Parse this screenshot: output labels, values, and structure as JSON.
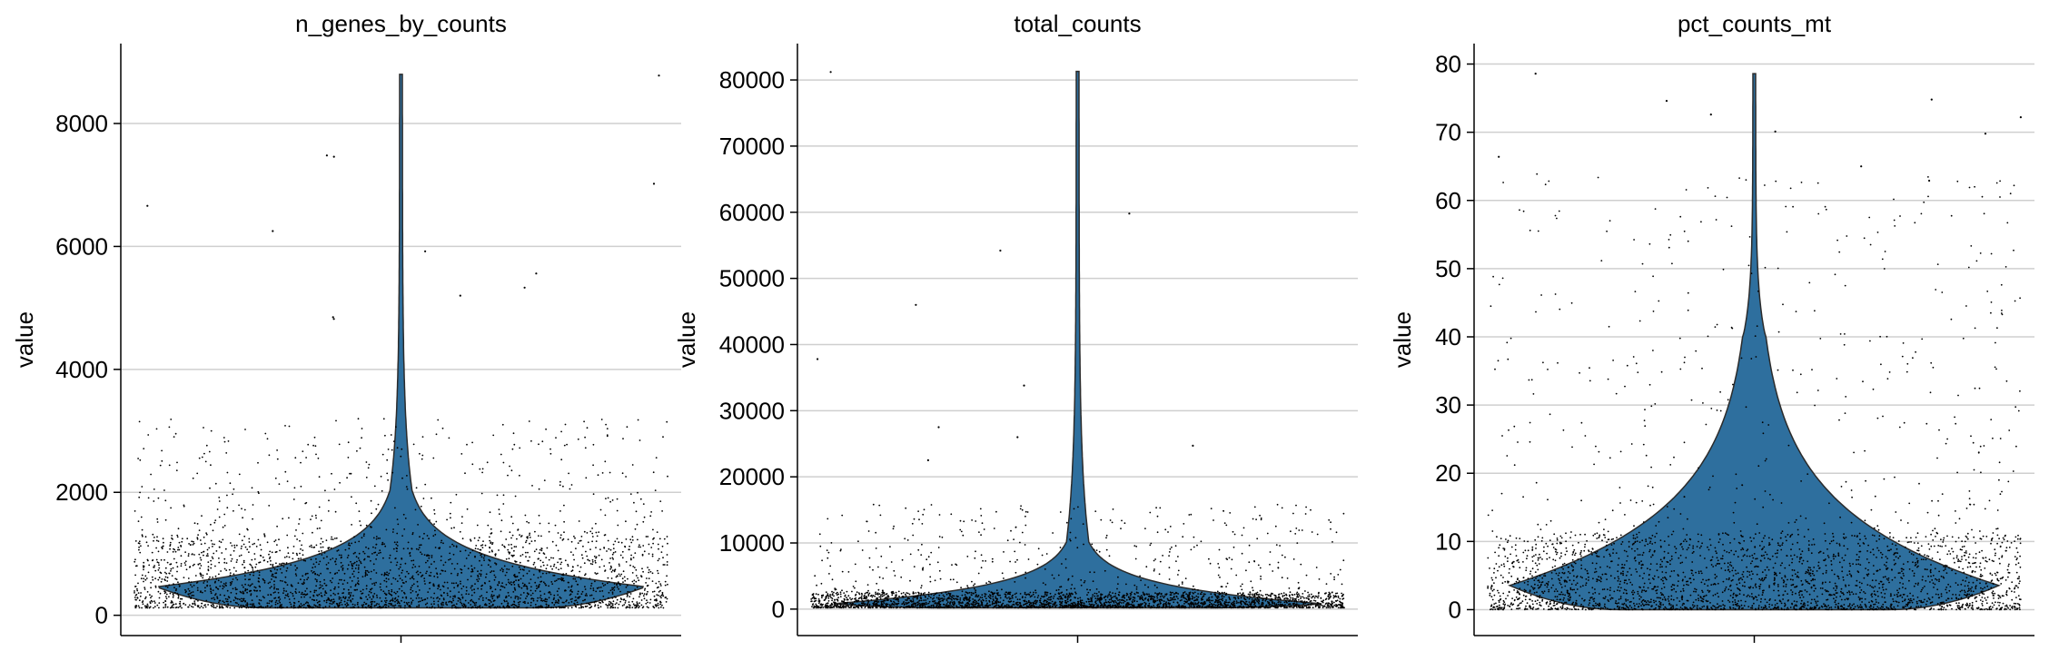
{
  "chart_data": [
    {
      "type": "violin",
      "title": "n_genes_by_counts",
      "ylabel": "value",
      "xlabel": "",
      "ylim": [
        -330,
        9300
      ],
      "yticks": [
        0,
        2000,
        4000,
        6000,
        8000
      ],
      "ytick_labels": [
        "0",
        "2000",
        "4000",
        "6000",
        "8000"
      ],
      "grid": true,
      "violin_color": "#2e6f9e",
      "point_color": "#000000",
      "distribution": {
        "min": 120,
        "q1": 290,
        "median": 450,
        "q3": 800,
        "max": 8800,
        "body_top": 2000,
        "body_mode": 460
      },
      "outliers": [
        8780,
        7480,
        7460,
        7020,
        6660,
        6250,
        5920,
        5560,
        5330,
        5200,
        4850,
        4820
      ]
    },
    {
      "type": "violin",
      "title": "total_counts",
      "ylabel": "value",
      "xlabel": "",
      "ylim": [
        -4000,
        85500
      ],
      "yticks": [
        0,
        10000,
        20000,
        30000,
        40000,
        50000,
        60000,
        70000,
        80000
      ],
      "ytick_labels": [
        "0",
        "10000",
        "20000",
        "30000",
        "40000",
        "50000",
        "60000",
        "70000",
        "80000"
      ],
      "grid": true,
      "violin_color": "#2e6f9e",
      "point_color": "#000000",
      "distribution": {
        "min": 200,
        "q1": 450,
        "median": 750,
        "q3": 1600,
        "max": 81300,
        "body_top": 10000,
        "body_mode": 800
      },
      "outliers": [
        81200,
        59800,
        54200,
        46000,
        37800,
        33800,
        27500,
        26000,
        24700,
        22500
      ]
    },
    {
      "type": "violin",
      "title": "pct_counts_mt",
      "ylabel": "value",
      "xlabel": "",
      "ylim": [
        -3.8,
        83
      ],
      "yticks": [
        0,
        10,
        20,
        30,
        40,
        50,
        60,
        70,
        80
      ],
      "ytick_labels": [
        "0",
        "10",
        "20",
        "30",
        "40",
        "50",
        "60",
        "70",
        "80"
      ],
      "grid": true,
      "violin_color": "#2e6f9e",
      "point_color": "#000000",
      "distribution": {
        "min": 0,
        "q1": 2,
        "median": 3.6,
        "q3": 7,
        "max": 78.6,
        "body_top": 40,
        "body_mode": 3.5
      },
      "outliers": [
        78.6,
        74.8,
        74.6,
        72.6,
        72.2,
        70.1,
        69.8,
        66.4,
        65.0,
        62.9
      ]
    }
  ]
}
